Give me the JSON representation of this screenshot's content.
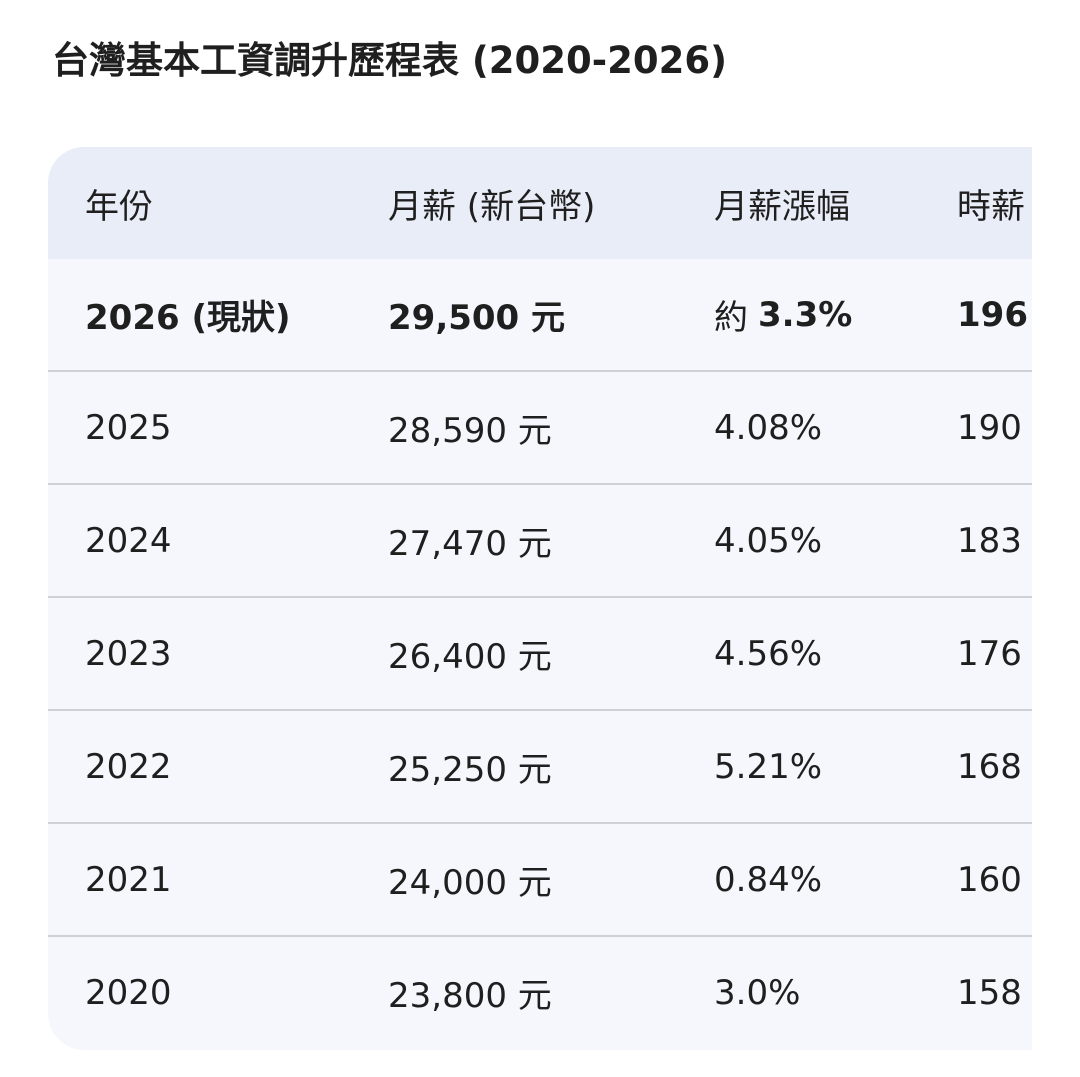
{
  "header": {
    "title": "台灣基本工資調升歷程表 (2020-2026)"
  },
  "table": {
    "columns": [
      "年份",
      "月薪 (新台幣)",
      "月薪漲幅",
      "時薪"
    ],
    "rows": [
      [
        "2026 (現狀)",
        "29,500 元",
        [
          "約",
          "3.3%"
        ],
        "196"
      ],
      [
        "2025",
        "28,590 元",
        "4.08%",
        "190"
      ],
      [
        "2024",
        "27,470 元",
        "4.05%",
        "183"
      ],
      [
        "2023",
        "26,400 元",
        "4.56%",
        "176"
      ],
      [
        "2022",
        "25,250 元",
        "5.21%",
        "168"
      ],
      [
        "2021",
        "24,000 元",
        "0.84%",
        "160"
      ],
      [
        "2020",
        "23,800 元",
        "3.0%",
        "158"
      ]
    ]
  }
}
